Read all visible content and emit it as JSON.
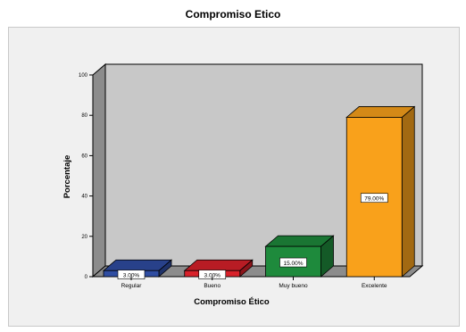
{
  "chart_data": {
    "type": "bar",
    "title": "Compromiso Etico",
    "xlabel": "Compromiso Ético",
    "ylabel": "Porcentaje",
    "categories": [
      "Regular",
      "Bueno",
      "Muy bueno",
      "Excelente"
    ],
    "values": [
      3.0,
      3.0,
      15.0,
      79.0
    ],
    "data_labels": [
      "3.00%",
      "3.00%",
      "15.00%",
      "79.00%"
    ],
    "bar_colors": [
      "#2f4da2",
      "#d8212a",
      "#1e8a3c",
      "#f9a11b"
    ],
    "ylim": [
      0,
      100
    ],
    "yticks": [
      0,
      20,
      40,
      60,
      80,
      100
    ],
    "ytick_labels": [
      "0",
      "20",
      "40",
      "60",
      "80",
      "100"
    ],
    "grid": false,
    "legend": "none",
    "style": "3d"
  }
}
